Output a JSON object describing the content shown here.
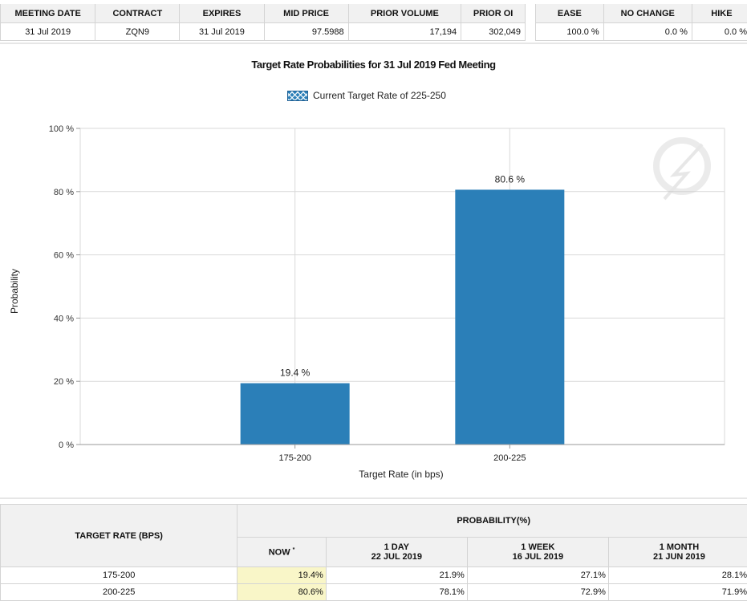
{
  "summary": {
    "headers": [
      "MEETING DATE",
      "CONTRACT",
      "EXPIRES",
      "MID PRICE",
      "PRIOR VOLUME",
      "PRIOR OI"
    ],
    "row": [
      "31 Jul 2019",
      "ZQN9",
      "31 Jul 2019",
      "97.5988",
      "17,194",
      "302,049"
    ]
  },
  "outcome": {
    "headers": [
      "EASE",
      "NO CHANGE",
      "HIKE"
    ],
    "row": [
      "100.0 %",
      "0.0 %",
      "0.0 %"
    ]
  },
  "chart_data": {
    "type": "bar",
    "title": "Target Rate Probabilities for 31 Jul 2019 Fed Meeting",
    "legend": "Current Target Rate of 225-250",
    "legend_position": "top-center",
    "categories": [
      "175-200",
      "200-225"
    ],
    "values": [
      19.4,
      80.6
    ],
    "data_labels": [
      "19.4 %",
      "80.6 %"
    ],
    "xlabel": "Target Rate (in bps)",
    "ylabel": "Probability",
    "ylim": [
      0,
      100
    ],
    "yticks": [
      "0 %",
      "20 %",
      "40 %",
      "60 %",
      "80 %",
      "100 %"
    ],
    "grid": true,
    "bar_color": "#2b7fb8"
  },
  "probability_table": {
    "rate_header": "TARGET RATE (BPS)",
    "prob_header": "PROBABILITY(%)",
    "columns": [
      {
        "label": "NOW",
        "marker": "*",
        "date": ""
      },
      {
        "label": "1 DAY",
        "date": "22 JUL 2019"
      },
      {
        "label": "1 WEEK",
        "date": "16 JUL 2019"
      },
      {
        "label": "1 MONTH",
        "date": "21 JUN 2019"
      }
    ],
    "rows": [
      {
        "rate": "175-200",
        "values": [
          "19.4%",
          "21.9%",
          "27.1%",
          "28.1%"
        ]
      },
      {
        "rate": "200-225",
        "values": [
          "80.6%",
          "78.1%",
          "72.9%",
          "71.9%"
        ]
      }
    ]
  }
}
